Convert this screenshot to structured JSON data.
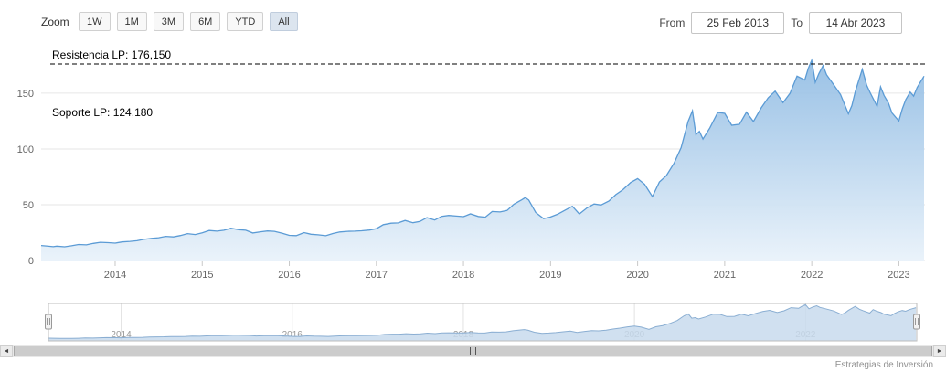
{
  "toolbar": {
    "zoom_label": "Zoom",
    "buttons": [
      {
        "label": "1W",
        "selected": false
      },
      {
        "label": "1M",
        "selected": false
      },
      {
        "label": "3M",
        "selected": false
      },
      {
        "label": "6M",
        "selected": false
      },
      {
        "label": "YTD",
        "selected": false
      },
      {
        "label": "All",
        "selected": true
      }
    ],
    "from_label": "From",
    "from_value": "25 Feb 2013",
    "to_label": "To",
    "to_value": "14 Abr 2023"
  },
  "annotations": {
    "resistance": {
      "label": "Resistencia LP: 176,150",
      "value": 176.15
    },
    "support": {
      "label": "Soporte LP: 124,180",
      "value": 124.18
    }
  },
  "credit": "Estrategias de Inversión",
  "chart_data": {
    "type": "area",
    "title": "",
    "xlabel": "",
    "ylabel": "",
    "xlim": [
      2013.15,
      2023.3
    ],
    "ylim": [
      0,
      186
    ],
    "yticks": [
      0,
      50,
      100,
      150
    ],
    "xticks": [
      2014,
      2015,
      2016,
      2017,
      2018,
      2019,
      2020,
      2021,
      2022,
      2023
    ],
    "navigator_xticks": [
      2014,
      2016,
      2018,
      2020,
      2022
    ],
    "grid": true,
    "legend": false,
    "colors": {
      "line": "#5b9bd5",
      "fill_top": "#8fbbe3",
      "fill_bottom": "#e9f2fa",
      "nav_fill": "#c8daed",
      "nav_line": "#8aaed2",
      "annotation_line": "#000000"
    },
    "points": [
      [
        2013.15,
        13.4
      ],
      [
        2013.21,
        13.0
      ],
      [
        2013.29,
        12.4
      ],
      [
        2013.33,
        12.9
      ],
      [
        2013.42,
        12.3
      ],
      [
        2013.5,
        13.2
      ],
      [
        2013.58,
        14.3
      ],
      [
        2013.67,
        14.0
      ],
      [
        2013.75,
        15.3
      ],
      [
        2013.83,
        16.3
      ],
      [
        2013.92,
        16.0
      ],
      [
        2014.0,
        15.6
      ],
      [
        2014.08,
        16.6
      ],
      [
        2014.17,
        17.1
      ],
      [
        2014.25,
        17.7
      ],
      [
        2014.33,
        18.9
      ],
      [
        2014.42,
        19.8
      ],
      [
        2014.5,
        20.4
      ],
      [
        2014.58,
        21.6
      ],
      [
        2014.67,
        21.1
      ],
      [
        2014.75,
        22.4
      ],
      [
        2014.83,
        24.1
      ],
      [
        2014.92,
        23.3
      ],
      [
        2015.0,
        24.8
      ],
      [
        2015.08,
        26.9
      ],
      [
        2015.17,
        26.3
      ],
      [
        2015.25,
        27.1
      ],
      [
        2015.33,
        28.9
      ],
      [
        2015.42,
        27.6
      ],
      [
        2015.5,
        27.1
      ],
      [
        2015.58,
        24.7
      ],
      [
        2015.67,
        25.7
      ],
      [
        2015.75,
        26.5
      ],
      [
        2015.83,
        26.1
      ],
      [
        2015.92,
        24.3
      ],
      [
        2016.0,
        22.5
      ],
      [
        2016.08,
        22.3
      ],
      [
        2016.17,
        25.0
      ],
      [
        2016.25,
        23.5
      ],
      [
        2016.33,
        23.0
      ],
      [
        2016.42,
        22.2
      ],
      [
        2016.5,
        24.2
      ],
      [
        2016.58,
        25.6
      ],
      [
        2016.67,
        26.1
      ],
      [
        2016.75,
        26.3
      ],
      [
        2016.83,
        26.6
      ],
      [
        2016.92,
        27.3
      ],
      [
        2017.0,
        28.5
      ],
      [
        2017.08,
        32.1
      ],
      [
        2017.17,
        33.4
      ],
      [
        2017.25,
        33.7
      ],
      [
        2017.33,
        35.9
      ],
      [
        2017.42,
        33.8
      ],
      [
        2017.5,
        35.0
      ],
      [
        2017.58,
        38.4
      ],
      [
        2017.67,
        36.3
      ],
      [
        2017.75,
        39.6
      ],
      [
        2017.83,
        40.4
      ],
      [
        2017.92,
        39.8
      ],
      [
        2018.0,
        39.3
      ],
      [
        2018.08,
        41.8
      ],
      [
        2018.17,
        39.5
      ],
      [
        2018.25,
        38.8
      ],
      [
        2018.33,
        43.9
      ],
      [
        2018.42,
        43.5
      ],
      [
        2018.5,
        44.8
      ],
      [
        2018.58,
        50.5
      ],
      [
        2018.67,
        54.4
      ],
      [
        2018.71,
        56.4
      ],
      [
        2018.75,
        54.2
      ],
      [
        2018.83,
        43.0
      ],
      [
        2018.92,
        37.5
      ],
      [
        2019.0,
        39.0
      ],
      [
        2019.08,
        41.5
      ],
      [
        2019.17,
        45.2
      ],
      [
        2019.25,
        48.6
      ],
      [
        2019.33,
        41.7
      ],
      [
        2019.42,
        47.2
      ],
      [
        2019.5,
        50.6
      ],
      [
        2019.58,
        49.7
      ],
      [
        2019.67,
        53.3
      ],
      [
        2019.75,
        59.1
      ],
      [
        2019.83,
        63.4
      ],
      [
        2019.92,
        69.9
      ],
      [
        2020.0,
        73.4
      ],
      [
        2020.08,
        68.3
      ],
      [
        2020.17,
        57.3
      ],
      [
        2020.25,
        70.3
      ],
      [
        2020.33,
        76.0
      ],
      [
        2020.42,
        87.4
      ],
      [
        2020.5,
        101.2
      ],
      [
        2020.58,
        124.8
      ],
      [
        2020.63,
        134.2
      ],
      [
        2020.67,
        112.8
      ],
      [
        2020.71,
        115.8
      ],
      [
        2020.75,
        108.9
      ],
      [
        2020.83,
        119.0
      ],
      [
        2020.92,
        132.7
      ],
      [
        2021.0,
        131.9
      ],
      [
        2021.08,
        121.3
      ],
      [
        2021.17,
        122.2
      ],
      [
        2021.25,
        133.0
      ],
      [
        2021.33,
        124.6
      ],
      [
        2021.42,
        136.9
      ],
      [
        2021.5,
        145.9
      ],
      [
        2021.58,
        151.8
      ],
      [
        2021.67,
        141.5
      ],
      [
        2021.75,
        149.8
      ],
      [
        2021.83,
        165.3
      ],
      [
        2021.92,
        161.8
      ],
      [
        2021.96,
        172.2
      ],
      [
        2022.0,
        179.5
      ],
      [
        2022.04,
        159.8
      ],
      [
        2022.08,
        167.3
      ],
      [
        2022.13,
        174.8
      ],
      [
        2022.17,
        166.6
      ],
      [
        2022.25,
        157.7
      ],
      [
        2022.33,
        148.8
      ],
      [
        2022.42,
        131.6
      ],
      [
        2022.46,
        138.9
      ],
      [
        2022.5,
        151.6
      ],
      [
        2022.58,
        171.5
      ],
      [
        2022.63,
        157.2
      ],
      [
        2022.67,
        150.4
      ],
      [
        2022.75,
        138.2
      ],
      [
        2022.79,
        155.7
      ],
      [
        2022.83,
        148.0
      ],
      [
        2022.88,
        141.2
      ],
      [
        2022.92,
        132.4
      ],
      [
        2023.0,
        125.1
      ],
      [
        2023.04,
        135.9
      ],
      [
        2023.08,
        144.3
      ],
      [
        2023.13,
        151.0
      ],
      [
        2023.17,
        147.4
      ],
      [
        2023.21,
        155.0
      ],
      [
        2023.25,
        160.3
      ],
      [
        2023.29,
        165.3
      ]
    ]
  }
}
